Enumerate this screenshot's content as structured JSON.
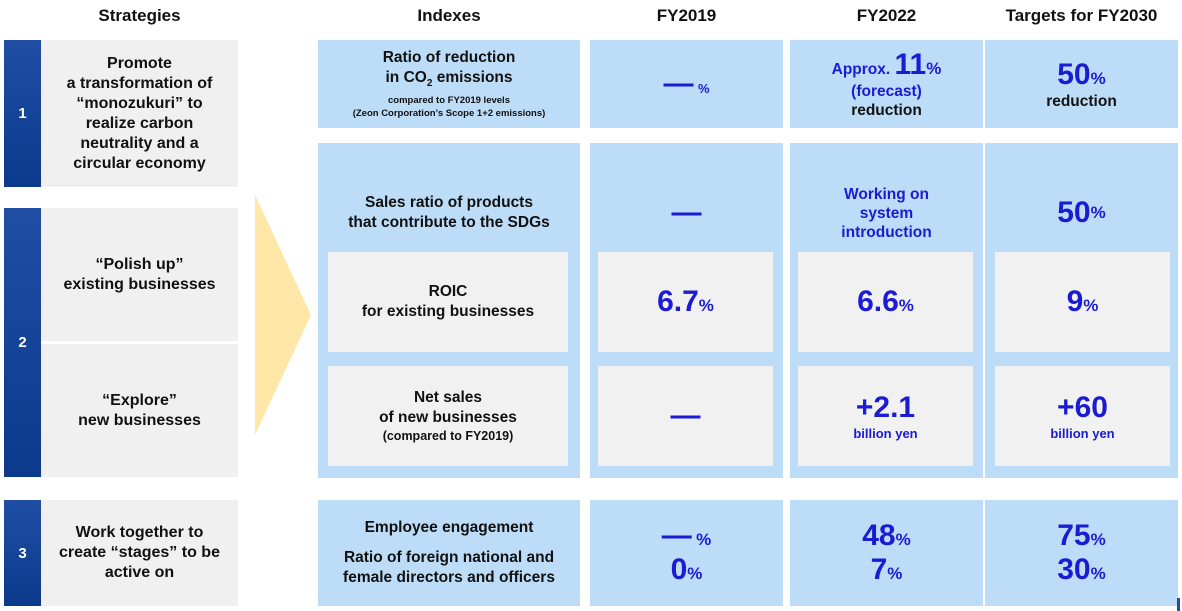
{
  "headers": {
    "strategies": "Strategies",
    "indexes": "Indexes",
    "fy2019": "FY2019",
    "fy2022": "FY2022",
    "targets": "Targets for FY2030"
  },
  "strategies": [
    {
      "num": "1",
      "lines": [
        "Promote",
        "a transformation of",
        "“monozukuri” to",
        "realize carbon",
        "neutrality and a",
        "circular economy"
      ]
    },
    {
      "num": "2",
      "a_lines": [
        "“Polish up”",
        "existing businesses"
      ],
      "b_lines": [
        "“Explore”",
        "new businesses"
      ]
    },
    {
      "num": "3",
      "lines": [
        "Work together to",
        "create “stages” to be",
        "active on"
      ]
    }
  ],
  "rows": {
    "co2": {
      "index_lines": [
        "Ratio of reduction",
        "in CO",
        "2",
        " emissions"
      ],
      "index_small": [
        "compared to FY2019 levels",
        "(Zeon Corporation’s Scope 1+2 emissions)"
      ],
      "fy2019_value": "—",
      "fy2019_unit": "%",
      "fy2022_prefix": "Approx. ",
      "fy2022_value": "11",
      "fy2022_unit": "%",
      "fy2022_note": "(forecast)",
      "fy2022_suffix": "reduction",
      "target_value": "50",
      "target_unit": "%",
      "target_suffix": "reduction"
    },
    "sdgs": {
      "index_lines": [
        "Sales ratio of products",
        "that contribute to the SDGs"
      ],
      "fy2019_value": "—",
      "fy2022_lines": [
        "Working on",
        "system",
        "introduction"
      ],
      "target_value": "50",
      "target_unit": "%"
    },
    "roic": {
      "index_lines": [
        "ROIC",
        "for existing businesses"
      ],
      "fy2019_value": "6.7",
      "fy2019_unit": "%",
      "fy2022_value": "6.6",
      "fy2022_unit": "%",
      "target_value": "9",
      "target_unit": "%"
    },
    "newbiz": {
      "index_lines": [
        "Net sales",
        "of new businesses"
      ],
      "index_small": "(compared to FY2019)",
      "fy2019_value": "—",
      "fy2022_value": "+2.1",
      "fy2022_unit": "billion yen",
      "target_value": "+60",
      "target_unit": "billion yen"
    },
    "people": {
      "index_a": "Employee engagement",
      "index_b_lines": [
        "Ratio of foreign national and",
        "female directors and officers"
      ],
      "fy2019_a": "—",
      "fy2019_a_unit": "%",
      "fy2019_b": "0",
      "fy2019_b_unit": "%",
      "fy2022_a": "48",
      "fy2022_a_unit": "%",
      "fy2022_b": "7",
      "fy2022_b_unit": "%",
      "target_a": "75",
      "target_a_unit": "%",
      "target_b": "30",
      "target_b_unit": "%"
    }
  },
  "colors": {
    "accent_blue": "#1b1bd3",
    "box_blue": "#bcdcf7",
    "box_gray": "#f1f1f1",
    "bar_navy": "#0b3a8c",
    "arrow": "#ffe7a8"
  }
}
